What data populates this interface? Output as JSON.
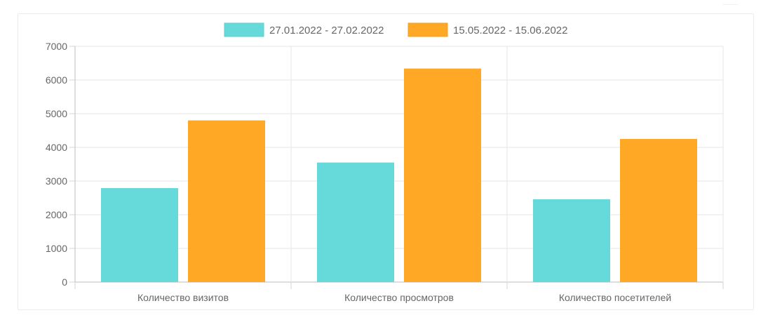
{
  "chart_data": {
    "type": "bar",
    "categories": [
      "Количество визитов",
      "Количество просмотров",
      "Количество посетителей"
    ],
    "series": [
      {
        "name": "27.01.2022 - 27.02.2022",
        "values": [
          2790,
          3550,
          2460
        ],
        "color": "#66d9da"
      },
      {
        "name": "15.05.2022 - 15.06.2022",
        "values": [
          4800,
          6340,
          4250
        ],
        "color": "#fea826"
      }
    ],
    "ylim": [
      0,
      7000
    ],
    "yticks": [
      "0",
      "1000",
      "2000",
      "3000",
      "4000",
      "5000",
      "6000",
      "7000"
    ],
    "grid": true,
    "legend_position": "top-center"
  }
}
